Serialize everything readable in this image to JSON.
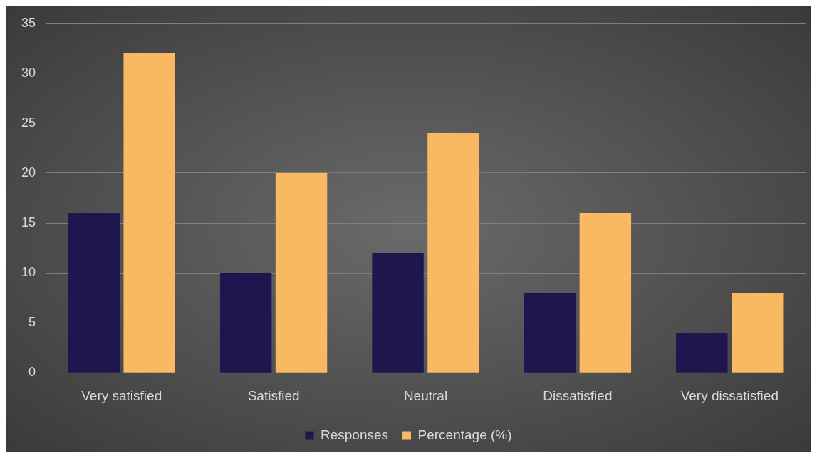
{
  "chart_data": {
    "type": "bar",
    "categories": [
      "Very satisfied",
      "Satisfied",
      "Neutral",
      "Dissatisfied",
      "Very dissatisfied"
    ],
    "series": [
      {
        "name": "Responses",
        "color": "#1f1650",
        "values": [
          16,
          10,
          12,
          8,
          4
        ]
      },
      {
        "name": "Percentage (%)",
        "color": "#f9b862",
        "values": [
          32,
          20,
          24,
          16,
          8
        ]
      }
    ],
    "ylim": [
      0,
      35
    ],
    "yticks": [
      0,
      5,
      10,
      15,
      20,
      25,
      30,
      35
    ],
    "grid": "y",
    "legend": "bottom"
  }
}
